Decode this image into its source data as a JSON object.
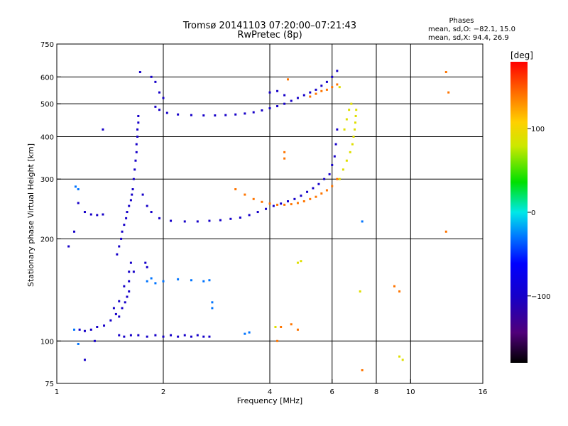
{
  "chart_data": {
    "type": "scatter",
    "title": "Tromsø 20141103 07:20:00–07:21:43",
    "subtitle": "RwPretec (8p)",
    "xlabel": "Frequency [MHz]",
    "ylabel": "Stationary phase Virtual Height [km]",
    "xscale": "log",
    "yscale": "log",
    "xlim": [
      1,
      16
    ],
    "ylim": [
      75,
      750
    ],
    "x_ticks": [
      1,
      2,
      4,
      6,
      8,
      10,
      16
    ],
    "x_tick_labels": [
      "1",
      "2",
      "4",
      "6",
      "8",
      "10",
      "16"
    ],
    "y_ticks": [
      75,
      100,
      200,
      300,
      400,
      500,
      600,
      750
    ],
    "y_tick_labels": [
      "75",
      "100",
      "200",
      "300",
      "400",
      "500",
      "600",
      "750"
    ],
    "grid": true,
    "phases": {
      "heading": "Phases",
      "o_line": "mean, sd,O: −82.1, 15.0",
      "x_line": "mean, sd,X:  94.4, 26.9"
    },
    "colorbar": {
      "label": "[deg]",
      "range": [
        -180,
        180
      ],
      "ticks": [
        100,
        0,
        -100
      ],
      "tick_labels": [
        "100",
        "0",
        "−100"
      ]
    },
    "series": [
      {
        "points": [
          [
            1.16,
            108
          ],
          [
            1.2,
            107
          ],
          [
            1.25,
            108
          ],
          [
            1.3,
            110
          ],
          [
            1.36,
            111
          ],
          [
            1.42,
            115
          ],
          [
            1.47,
            120
          ],
          [
            1.5,
            118
          ],
          [
            1.53,
            125
          ],
          [
            1.56,
            130
          ],
          [
            1.58,
            135
          ],
          [
            1.6,
            140
          ],
          [
            1.45,
            125
          ],
          [
            1.5,
            131
          ],
          [
            1.55,
            145
          ],
          [
            1.6,
            150
          ],
          [
            1.5,
            104
          ],
          [
            1.55,
            103
          ],
          [
            1.62,
            104
          ],
          [
            1.7,
            104
          ],
          [
            1.8,
            103
          ],
          [
            1.9,
            104
          ],
          [
            2.0,
            103
          ],
          [
            2.1,
            104
          ],
          [
            2.2,
            103
          ],
          [
            2.3,
            104
          ],
          [
            2.4,
            103
          ],
          [
            2.5,
            104
          ],
          [
            2.6,
            103
          ],
          [
            2.7,
            103
          ],
          [
            1.6,
            160
          ],
          [
            1.62,
            170
          ],
          [
            1.65,
            160
          ],
          [
            1.78,
            170
          ],
          [
            1.8,
            165
          ],
          [
            1.2,
            240
          ],
          [
            1.25,
            236
          ],
          [
            1.3,
            235
          ],
          [
            1.35,
            236
          ],
          [
            1.15,
            255
          ],
          [
            1.48,
            180
          ],
          [
            1.5,
            190
          ],
          [
            1.52,
            200
          ],
          [
            1.53,
            210
          ],
          [
            1.55,
            220
          ],
          [
            1.57,
            230
          ],
          [
            1.58,
            240
          ],
          [
            1.6,
            250
          ],
          [
            1.62,
            260
          ],
          [
            1.63,
            270
          ],
          [
            1.64,
            280
          ],
          [
            1.65,
            300
          ],
          [
            1.66,
            320
          ],
          [
            1.67,
            340
          ],
          [
            1.68,
            360
          ],
          [
            1.68,
            380
          ],
          [
            1.69,
            400
          ],
          [
            1.69,
            420
          ],
          [
            1.7,
            440
          ],
          [
            1.7,
            460
          ],
          [
            1.75,
            270
          ],
          [
            1.8,
            250
          ],
          [
            1.85,
            240
          ],
          [
            1.95,
            230
          ],
          [
            2.1,
            226
          ],
          [
            2.3,
            225
          ],
          [
            2.5,
            225
          ],
          [
            2.7,
            226
          ],
          [
            2.9,
            227
          ],
          [
            3.1,
            229
          ],
          [
            3.3,
            231
          ],
          [
            3.5,
            235
          ],
          [
            3.7,
            240
          ],
          [
            3.9,
            245
          ],
          [
            4.1,
            250
          ],
          [
            4.3,
            254
          ],
          [
            4.5,
            258
          ],
          [
            4.7,
            262
          ],
          [
            4.9,
            268
          ],
          [
            5.1,
            275
          ],
          [
            5.3,
            282
          ],
          [
            5.5,
            290
          ],
          [
            5.7,
            300
          ],
          [
            5.9,
            310
          ],
          [
            6.0,
            330
          ],
          [
            6.1,
            350
          ],
          [
            6.15,
            380
          ],
          [
            6.2,
            420
          ],
          [
            1.9,
            490
          ],
          [
            1.95,
            480
          ],
          [
            2.05,
            470
          ],
          [
            2.2,
            465
          ],
          [
            2.4,
            463
          ],
          [
            2.6,
            462
          ],
          [
            2.8,
            462
          ],
          [
            3.0,
            463
          ],
          [
            3.2,
            465
          ],
          [
            3.4,
            468
          ],
          [
            3.6,
            472
          ],
          [
            3.8,
            478
          ],
          [
            4.0,
            485
          ],
          [
            4.2,
            492
          ],
          [
            4.4,
            500
          ],
          [
            4.6,
            510
          ],
          [
            4.8,
            520
          ],
          [
            5.0,
            530
          ],
          [
            5.2,
            540
          ],
          [
            5.4,
            550
          ],
          [
            5.6,
            565
          ],
          [
            5.8,
            580
          ],
          [
            6.0,
            600
          ],
          [
            6.2,
            625
          ],
          [
            1.72,
            620
          ],
          [
            1.85,
            600
          ],
          [
            1.9,
            580
          ],
          [
            1.95,
            540
          ],
          [
            2.0,
            520
          ],
          [
            4.0,
            540
          ],
          [
            4.2,
            545
          ],
          [
            4.4,
            530
          ],
          [
            1.35,
            420
          ],
          [
            1.08,
            190
          ],
          [
            1.12,
            210
          ],
          [
            1.2,
            88
          ],
          [
            1.28,
            100
          ]
        ],
        "phase": -100
      },
      {
        "points": [
          [
            1.8,
            150
          ],
          [
            1.85,
            153
          ],
          [
            1.9,
            148
          ],
          [
            2.0,
            150
          ],
          [
            2.2,
            152
          ],
          [
            2.4,
            151
          ],
          [
            2.6,
            150
          ],
          [
            2.7,
            151
          ],
          [
            2.75,
            130
          ],
          [
            2.75,
            125
          ],
          [
            1.13,
            285
          ],
          [
            1.15,
            280
          ],
          [
            1.12,
            108
          ],
          [
            1.15,
            98
          ],
          [
            3.4,
            105
          ],
          [
            3.5,
            106
          ],
          [
            7.3,
            225
          ]
        ],
        "phase": -30
      },
      {
        "points": [
          [
            6.3,
            300
          ],
          [
            6.45,
            320
          ],
          [
            6.6,
            340
          ],
          [
            6.75,
            360
          ],
          [
            6.85,
            380
          ],
          [
            6.9,
            400
          ],
          [
            6.95,
            420
          ],
          [
            6.98,
            440
          ],
          [
            7.0,
            460
          ],
          [
            7.02,
            480
          ],
          [
            6.8,
            500
          ],
          [
            6.7,
            480
          ],
          [
            6.6,
            450
          ],
          [
            6.5,
            420
          ],
          [
            4.8,
            170
          ],
          [
            4.9,
            172
          ],
          [
            7.2,
            140
          ],
          [
            9.3,
            90
          ],
          [
            9.5,
            88
          ],
          [
            4.15,
            110
          ],
          [
            6.3,
            560
          ]
        ],
        "phase": 90
      },
      {
        "points": [
          [
            3.2,
            280
          ],
          [
            3.4,
            270
          ],
          [
            3.6,
            262
          ],
          [
            3.8,
            257
          ],
          [
            4.0,
            254
          ],
          [
            4.2,
            252
          ],
          [
            4.4,
            252
          ],
          [
            4.6,
            253
          ],
          [
            4.8,
            255
          ],
          [
            5.0,
            258
          ],
          [
            5.2,
            262
          ],
          [
            5.4,
            266
          ],
          [
            5.6,
            272
          ],
          [
            5.8,
            278
          ],
          [
            6.0,
            286
          ],
          [
            6.2,
            300
          ],
          [
            5.2,
            525
          ],
          [
            5.4,
            535
          ],
          [
            5.6,
            545
          ],
          [
            5.8,
            550
          ],
          [
            6.0,
            560
          ],
          [
            6.2,
            570
          ],
          [
            4.3,
            110
          ],
          [
            4.6,
            112
          ],
          [
            4.8,
            108
          ],
          [
            9.0,
            145
          ],
          [
            9.3,
            140
          ],
          [
            12.8,
            540
          ],
          [
            12.6,
            620
          ],
          [
            12.6,
            210
          ],
          [
            4.4,
            345
          ],
          [
            4.4,
            360
          ],
          [
            4.2,
            100
          ],
          [
            7.3,
            82
          ],
          [
            4.5,
            590
          ]
        ],
        "phase": 140
      }
    ]
  }
}
